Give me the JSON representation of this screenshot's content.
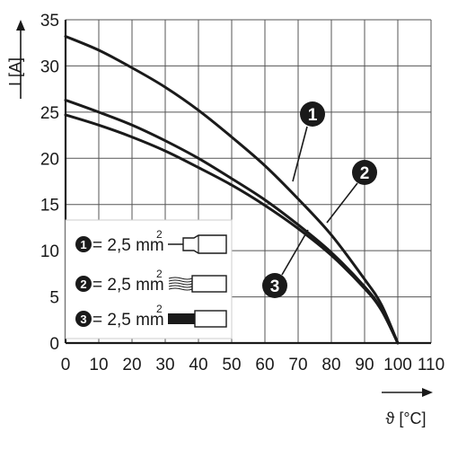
{
  "chart_data": {
    "type": "line",
    "xlabel": "ϑ [°C]",
    "ylabel": "I [A]",
    "xlim": [
      0,
      110
    ],
    "ylim": [
      0,
      35
    ],
    "x_ticks": [
      "0",
      "10",
      "20",
      "30",
      "40",
      "50",
      "60",
      "70",
      "80",
      "90",
      "100",
      "110"
    ],
    "y_ticks": [
      "0",
      "5",
      "10",
      "15",
      "20",
      "25",
      "30",
      "35"
    ],
    "grid": true,
    "legend_position": "bottom-left",
    "series": [
      {
        "name": "1",
        "legend_label": "= 2,5 mm",
        "legend_sup": "2",
        "conductor": "ferrule",
        "color": "#1a1a1a",
        "x": [
          0,
          10,
          20,
          30,
          40,
          50,
          60,
          70,
          80,
          90,
          95,
          100
        ],
        "y": [
          33.2,
          31.7,
          29.8,
          27.7,
          25.2,
          22.3,
          19.2,
          15.6,
          11.7,
          6.9,
          4.2,
          0
        ]
      },
      {
        "name": "2",
        "legend_label": "= 2,5 mm",
        "legend_sup": "2",
        "conductor": "flexible stranded",
        "color": "#1a1a1a",
        "x": [
          0,
          10,
          20,
          30,
          40,
          50,
          60,
          70,
          80,
          90,
          95,
          100
        ],
        "y": [
          26.3,
          25.0,
          23.6,
          21.9,
          20.0,
          17.8,
          15.5,
          12.8,
          9.8,
          6.1,
          3.7,
          0
        ]
      },
      {
        "name": "3",
        "legend_label": "= 2,5 mm",
        "legend_sup": "2",
        "conductor": "solid",
        "color": "#1a1a1a",
        "x": [
          0,
          10,
          20,
          30,
          40,
          50,
          60,
          70,
          80,
          90,
          95,
          100
        ],
        "y": [
          24.7,
          23.6,
          22.3,
          20.8,
          19.0,
          17.1,
          14.9,
          12.4,
          9.5,
          5.9,
          3.6,
          0
        ]
      }
    ]
  }
}
